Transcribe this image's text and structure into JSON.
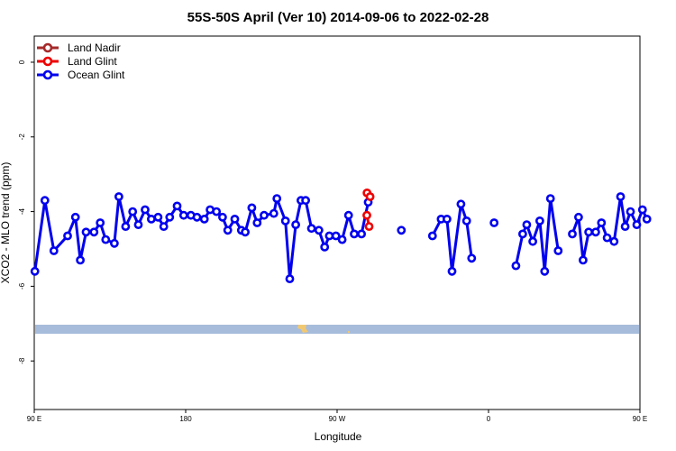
{
  "chart_data": {
    "type": "line",
    "title": "55S-50S April (Ver 10)   2014-09-06 to 2022-02-28",
    "xlabel": "Longitude",
    "ylabel": "XCO2 - MLO trend (ppm)",
    "xlim": [
      90,
      450
    ],
    "ylim": [
      -9.3,
      0.7
    ],
    "x_ticks": [
      {
        "value": 90,
        "label": "90 E"
      },
      {
        "value": 180,
        "label": "180"
      },
      {
        "value": 270,
        "label": "90 W"
      },
      {
        "value": 360,
        "label": "0"
      },
      {
        "value": 450,
        "label": "90 E"
      },
      {
        "value": 540,
        "label": "180"
      }
    ],
    "y_ticks": [
      {
        "value": 0,
        "label": "0"
      },
      {
        "value": -2,
        "label": "-2"
      },
      {
        "value": -4,
        "label": "-4"
      },
      {
        "value": -6,
        "label": "-6"
      },
      {
        "value": -8,
        "label": "-8"
      }
    ],
    "legend_position": "top-left",
    "series": [
      {
        "name": "Land Nadir",
        "color": "#a52a2a",
        "segments": []
      },
      {
        "name": "Land Glint",
        "color": "#ee0000",
        "segments": [
          [
            [
              287.8,
              -3.5
            ],
            [
              289.6,
              -3.6
            ]
          ],
          [
            [
              287.7,
              -4.1
            ],
            [
              289.0,
              -4.4
            ]
          ]
        ]
      },
      {
        "name": "Ocean Glint",
        "color": "#0000ee",
        "segments": [
          [
            [
              90.4,
              -5.6
            ],
            [
              96.3,
              -3.7
            ],
            [
              101.7,
              -5.05
            ],
            [
              109.8,
              -4.65
            ],
            [
              114.5,
              -4.15
            ],
            [
              117.4,
              -5.3
            ],
            [
              120.8,
              -4.55
            ],
            [
              125.5,
              -4.55
            ],
            [
              129.2,
              -4.3
            ],
            [
              132.5,
              -4.75
            ],
            [
              137.6,
              -4.85
            ],
            [
              140.3,
              -3.6
            ],
            [
              144.3,
              -4.4
            ],
            [
              148.5,
              -4.0
            ],
            [
              151.9,
              -4.35
            ],
            [
              155.9,
              -3.95
            ],
            [
              159.6,
              -4.2
            ],
            [
              163.6,
              -4.15
            ],
            [
              167.0,
              -4.4
            ],
            [
              170.5,
              -4.15
            ],
            [
              174.9,
              -3.85
            ],
            [
              178.8,
              -4.1
            ],
            [
              183.1,
              -4.1
            ],
            [
              186.7,
              -4.15
            ],
            [
              191.1,
              -4.2
            ],
            [
              194.5,
              -3.95
            ],
            [
              198.3,
              -4.0
            ],
            [
              201.9,
              -4.15
            ],
            [
              205.0,
              -4.5
            ],
            [
              209.2,
              -4.2
            ],
            [
              213.1,
              -4.5
            ],
            [
              215.4,
              -4.55
            ],
            [
              219.3,
              -3.9
            ],
            [
              222.5,
              -4.3
            ],
            [
              226.6,
              -4.1
            ],
            [
              232.4,
              -4.05
            ],
            [
              234.2,
              -3.65
            ],
            [
              239.3,
              -4.25
            ],
            [
              241.9,
              -5.8
            ],
            [
              245.4,
              -4.35
            ],
            [
              248.5,
              -3.7
            ],
            [
              251.3,
              -3.7
            ],
            [
              254.8,
              -4.45
            ],
            [
              259.2,
              -4.5
            ],
            [
              262.6,
              -4.95
            ],
            [
              265.4,
              -4.65
            ],
            [
              269.3,
              -4.65
            ],
            [
              273.0,
              -4.75
            ],
            [
              276.8,
              -4.1
            ],
            [
              280.2,
              -4.6
            ],
            [
              284.5,
              -4.6
            ],
            [
              288.5,
              -3.75
            ]
          ],
          [
            [
              308.2,
              -4.5
            ]
          ],
          [
            [
              326.7,
              -4.65
            ],
            [
              331.8,
              -4.2
            ],
            [
              335.3,
              -4.2
            ],
            [
              338.3,
              -5.6
            ],
            [
              343.6,
              -3.8
            ],
            [
              347.0,
              -4.25
            ],
            [
              350.0,
              -5.25
            ]
          ],
          [
            [
              363.3,
              -4.3
            ]
          ],
          [
            [
              376.3,
              -5.45
            ],
            [
              380.3,
              -4.6
            ],
            [
              382.7,
              -4.35
            ],
            [
              386.3,
              -4.8
            ],
            [
              390.5,
              -4.25
            ],
            [
              393.4,
              -5.6
            ],
            [
              396.8,
              -3.65
            ],
            [
              401.4,
              -5.05
            ]
          ],
          [
            [
              409.8,
              -4.6
            ],
            [
              413.5,
              -4.15
            ],
            [
              416.2,
              -5.3
            ],
            [
              419.5,
              -4.55
            ],
            [
              423.7,
              -4.55
            ],
            [
              427.1,
              -4.3
            ],
            [
              430.5,
              -4.7
            ],
            [
              434.6,
              -4.8
            ],
            [
              438.5,
              -3.6
            ],
            [
              441.2,
              -4.4
            ],
            [
              444.4,
              -4.0
            ],
            [
              448.1,
              -4.35
            ],
            [
              451.5,
              -3.95
            ],
            [
              454.1,
              -4.2
            ]
          ]
        ]
      }
    ]
  }
}
